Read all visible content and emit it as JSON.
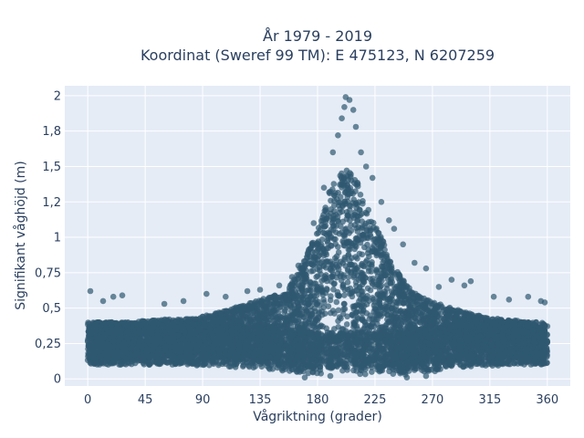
{
  "chart_data": {
    "type": "scatter",
    "title": "År 1979 - 2019",
    "subtitle": "Koordinat (Sweref 99 TM): E 475123, N 6207259",
    "xlabel": "Vågriktning (grader)",
    "ylabel": "Signifikant våghöjd (m)",
    "xlim": [
      -18,
      378
    ],
    "ylim": [
      -0.05,
      2.07
    ],
    "x_ticks": [
      0,
      45,
      90,
      135,
      180,
      225,
      270,
      315,
      360
    ],
    "x_tick_labels": [
      "0",
      "45",
      "90",
      "135",
      "180",
      "225",
      "270",
      "315",
      "360"
    ],
    "y_ticks": [
      0,
      0.25,
      0.5,
      0.75,
      1,
      1.25,
      1.5,
      1.75,
      2
    ],
    "y_tick_labels": [
      "0",
      "0,25",
      "0,5",
      "0,75",
      "1",
      "1,2",
      "1,5",
      "1,8",
      "2"
    ],
    "grid": true,
    "legend": "none",
    "colors": {
      "marker": "#2f5870",
      "plot_bg": "#e5ecf6",
      "grid": "#ffffff",
      "text": "#2a3f5f"
    },
    "series": [
      {
        "envelope": {
          "x": [
            0,
            15,
            30,
            45,
            60,
            75,
            90,
            105,
            120,
            135,
            150,
            160,
            170,
            180,
            190,
            200,
            210,
            220,
            230,
            240,
            250,
            260,
            270,
            285,
            300,
            315,
            330,
            345,
            360
          ],
          "y_min": [
            0.1,
            0.1,
            0.1,
            0.1,
            0.1,
            0.1,
            0.09,
            0.09,
            0.08,
            0.08,
            0.05,
            0.04,
            0.03,
            0.03,
            0.03,
            0.03,
            0.03,
            0.03,
            0.03,
            0.03,
            0.03,
            0.05,
            0.05,
            0.08,
            0.08,
            0.09,
            0.1,
            0.1,
            0.1
          ],
          "y_dense_max": [
            0.4,
            0.4,
            0.4,
            0.41,
            0.42,
            0.42,
            0.44,
            0.48,
            0.52,
            0.56,
            0.6,
            0.68,
            0.85,
            1.05,
            1.35,
            1.5,
            1.42,
            1.2,
            1.0,
            0.8,
            0.66,
            0.58,
            0.55,
            0.5,
            0.46,
            0.43,
            0.42,
            0.4,
            0.4
          ]
        },
        "points": [
          {
            "x": 2,
            "y": 0.62
          },
          {
            "x": 12,
            "y": 0.55
          },
          {
            "x": 20,
            "y": 0.58
          },
          {
            "x": 27,
            "y": 0.59
          },
          {
            "x": 60,
            "y": 0.53
          },
          {
            "x": 75,
            "y": 0.55
          },
          {
            "x": 93,
            "y": 0.6
          },
          {
            "x": 108,
            "y": 0.58
          },
          {
            "x": 125,
            "y": 0.62
          },
          {
            "x": 135,
            "y": 0.63
          },
          {
            "x": 150,
            "y": 0.66
          },
          {
            "x": 160,
            "y": 0.72
          },
          {
            "x": 165,
            "y": 0.8
          },
          {
            "x": 177,
            "y": 1.1
          },
          {
            "x": 185,
            "y": 1.35
          },
          {
            "x": 192,
            "y": 1.6
          },
          {
            "x": 196,
            "y": 1.72
          },
          {
            "x": 199,
            "y": 1.84
          },
          {
            "x": 201,
            "y": 1.92
          },
          {
            "x": 202,
            "y": 1.99
          },
          {
            "x": 205,
            "y": 1.97
          },
          {
            "x": 208,
            "y": 1.9
          },
          {
            "x": 210,
            "y": 1.78
          },
          {
            "x": 214,
            "y": 1.6
          },
          {
            "x": 218,
            "y": 1.5
          },
          {
            "x": 223,
            "y": 1.42
          },
          {
            "x": 230,
            "y": 1.25
          },
          {
            "x": 236,
            "y": 1.12
          },
          {
            "x": 240,
            "y": 1.06
          },
          {
            "x": 247,
            "y": 0.95
          },
          {
            "x": 256,
            "y": 0.82
          },
          {
            "x": 265,
            "y": 0.78
          },
          {
            "x": 275,
            "y": 0.65
          },
          {
            "x": 285,
            "y": 0.7
          },
          {
            "x": 295,
            "y": 0.66
          },
          {
            "x": 300,
            "y": 0.69
          },
          {
            "x": 318,
            "y": 0.58
          },
          {
            "x": 330,
            "y": 0.56
          },
          {
            "x": 345,
            "y": 0.58
          },
          {
            "x": 355,
            "y": 0.55
          },
          {
            "x": 358,
            "y": 0.54
          },
          {
            "x": 170,
            "y": 0.01
          },
          {
            "x": 190,
            "y": 0.02
          },
          {
            "x": 250,
            "y": 0.01
          },
          {
            "x": 265,
            "y": 0.02
          }
        ]
      }
    ]
  }
}
